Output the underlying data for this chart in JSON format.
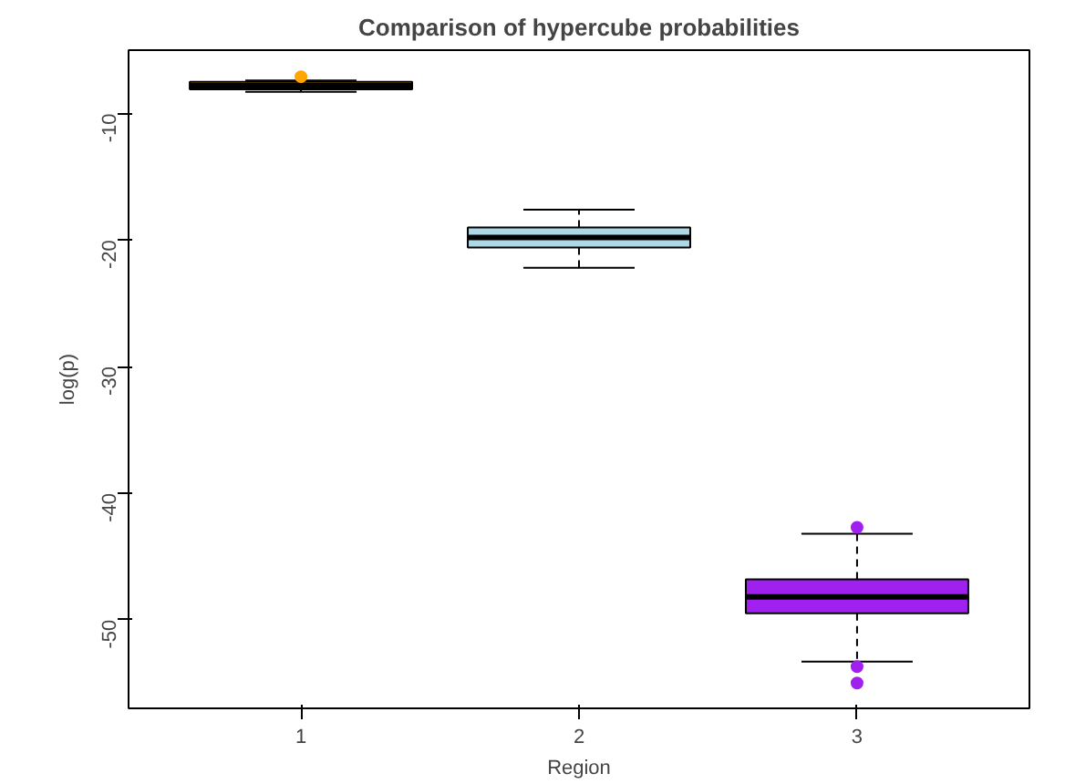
{
  "chart_data": {
    "type": "box",
    "title": "Comparison of hypercube probabilities",
    "xlabel": "Region",
    "ylabel": "log(p)",
    "categories": [
      "1",
      "2",
      "3"
    ],
    "colors": [
      "#ffa500",
      "#add8e6",
      "#a020f0"
    ],
    "boxes": [
      {
        "low": -8.3,
        "q1": -8.1,
        "median": -7.8,
        "q3": -7.5,
        "high": -7.4,
        "outliers": [
          -7.1
        ]
      },
      {
        "low": -22.2,
        "q1": -20.6,
        "median": -19.8,
        "q3": -19.0,
        "high": -17.6
      },
      {
        "low": -53.3,
        "q1": -49.5,
        "median": -48.2,
        "q3": -46.8,
        "high": -43.2,
        "outliers": [
          -42.7,
          -53.7,
          -55.0
        ]
      }
    ],
    "ylim": [
      -57,
      -5
    ],
    "yticks": [
      -10,
      -20,
      -30,
      -40,
      -50
    ],
    "grid": false
  }
}
